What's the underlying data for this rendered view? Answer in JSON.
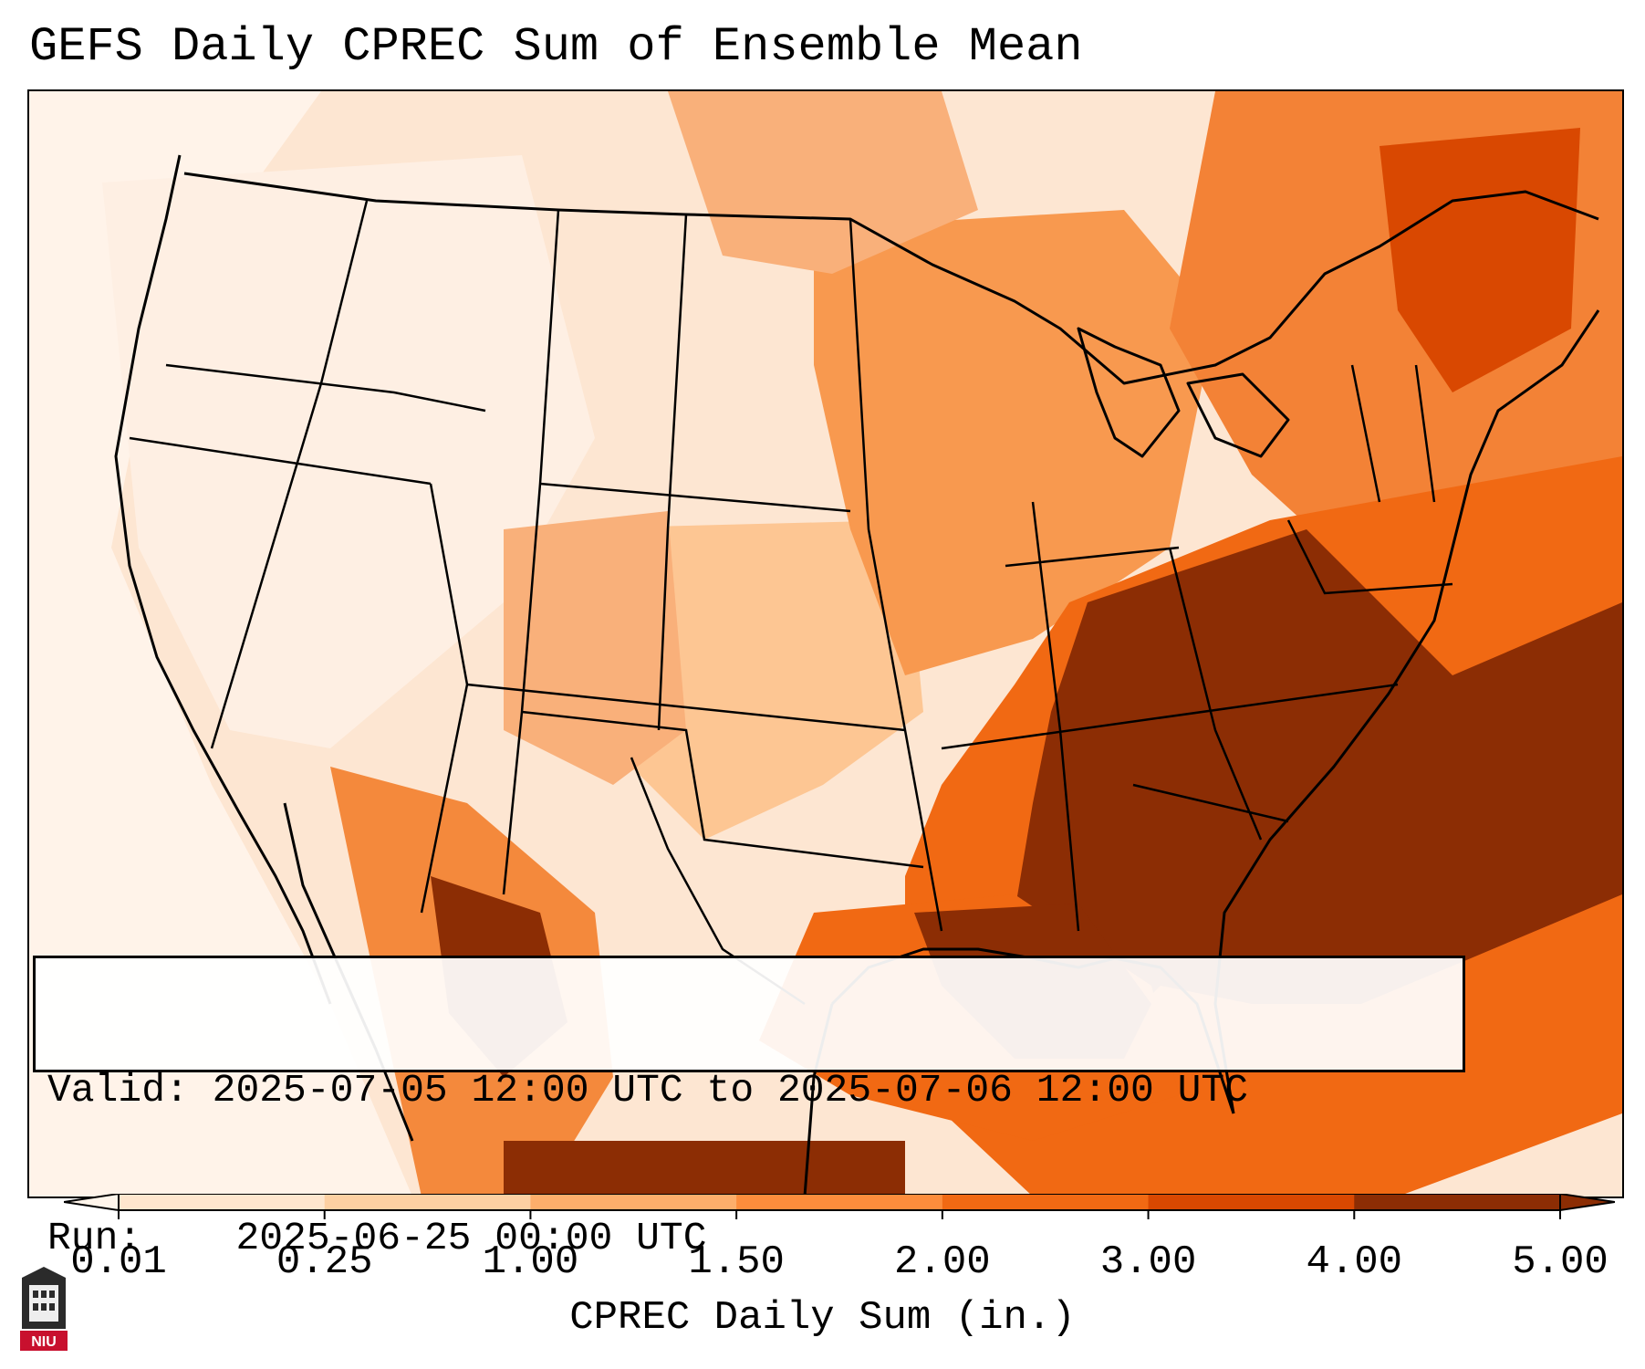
{
  "title": "GEFS Daily CPREC Sum of Ensemble Mean",
  "info": {
    "valid_label": "Valid:",
    "valid_value": "2025-07-05 12:00 UTC to 2025-07-06 12:00 UTC",
    "run_label": "Run:",
    "run_value": "2025-06-25 00:00 UTC"
  },
  "colorbar": {
    "label": "CPREC Daily Sum (in.)",
    "ticks": [
      "0.01",
      "0.25",
      "1.00",
      "1.50",
      "2.00",
      "3.00",
      "4.00",
      "5.00"
    ],
    "colors": [
      "#fff5eb",
      "#fee6ce",
      "#fdd0a2",
      "#fdae6b",
      "#fd8d3c",
      "#f16913",
      "#d94801",
      "#8c2d04"
    ],
    "extend": "both"
  },
  "logo": {
    "text": "NIU",
    "icon": "university-tower-icon"
  }
}
